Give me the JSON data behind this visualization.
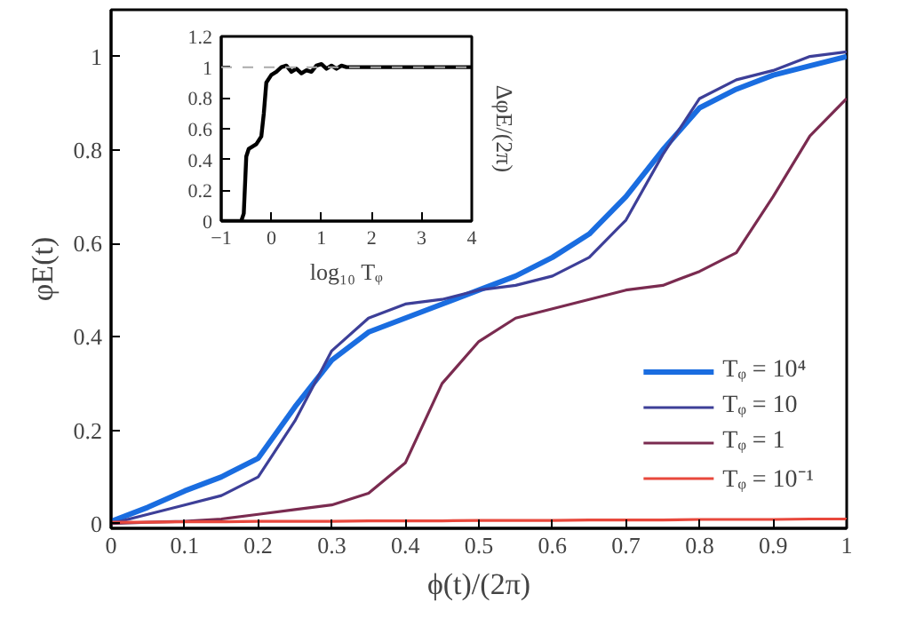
{
  "chart_data": [
    {
      "type": "line",
      "xlabel": "ϕ(t)/(2π)",
      "ylabel": "φE(t)",
      "xlim": [
        0,
        1
      ],
      "ylim": [
        -0.01,
        1.1
      ],
      "xticks": [
        0,
        0.1,
        0.2,
        0.3,
        0.4,
        0.5,
        0.6,
        0.7,
        0.8,
        0.9,
        1
      ],
      "yticks": [
        0,
        0.2,
        0.4,
        0.6,
        0.8,
        1
      ],
      "x": [
        0,
        0.05,
        0.1,
        0.15,
        0.2,
        0.25,
        0.3,
        0.35,
        0.4,
        0.45,
        0.5,
        0.55,
        0.6,
        0.65,
        0.7,
        0.75,
        0.8,
        0.85,
        0.9,
        0.95,
        1
      ],
      "legend": "bottom right",
      "grid": false,
      "line_style": "solid",
      "series": [
        {
          "name": "Tᵩ = 10⁴",
          "color": "#1a6de0",
          "values": [
            0.005,
            0.035,
            0.07,
            0.1,
            0.14,
            0.25,
            0.35,
            0.41,
            0.44,
            0.47,
            0.5,
            0.53,
            0.57,
            0.62,
            0.7,
            0.8,
            0.89,
            0.93,
            0.96,
            0.98,
            1.0
          ]
        },
        {
          "name": "Tᵩ = 10",
          "color": "#3d3f98",
          "values": [
            0.0,
            0.02,
            0.04,
            0.06,
            0.1,
            0.22,
            0.37,
            0.44,
            0.47,
            0.48,
            0.5,
            0.51,
            0.53,
            0.57,
            0.65,
            0.79,
            0.91,
            0.95,
            0.97,
            1.0,
            1.01
          ]
        },
        {
          "name": "Tᵩ = 1",
          "color": "#7a2b50",
          "values": [
            0.0,
            0.003,
            0.005,
            0.01,
            0.02,
            0.03,
            0.04,
            0.065,
            0.13,
            0.3,
            0.39,
            0.44,
            0.46,
            0.48,
            0.5,
            0.51,
            0.54,
            0.58,
            0.7,
            0.83,
            0.91
          ]
        },
        {
          "name": "Tᵩ = 10⁻¹",
          "color": "#e8483c",
          "values": [
            0.003,
            0.003,
            0.004,
            0.004,
            0.005,
            0.005,
            0.005,
            0.006,
            0.006,
            0.006,
            0.007,
            0.007,
            0.007,
            0.008,
            0.008,
            0.008,
            0.009,
            0.009,
            0.009,
            0.01,
            0.01
          ]
        }
      ]
    },
    {
      "type": "line",
      "xlabel": "log₁₀ Tᵩ",
      "y2label": "ΔφE/(2π)",
      "xlim": [
        -1,
        4
      ],
      "ylim": [
        0,
        1.2
      ],
      "xticks": [
        -1,
        0,
        1,
        2,
        3,
        4
      ],
      "yticks": [
        0,
        0.2,
        0.4,
        0.6,
        0.8,
        1,
        1.2
      ],
      "grid": false,
      "legend": false,
      "ref_lines": [
        {
          "axis": "y",
          "value": 1,
          "color": "#aaaaaa",
          "line_style": "dashed"
        }
      ],
      "x": [
        -1,
        -0.6,
        -0.55,
        -0.5,
        -0.45,
        -0.3,
        -0.2,
        -0.15,
        -0.1,
        0,
        0.1,
        0.2,
        0.3,
        0.4,
        0.5,
        0.6,
        0.7,
        0.8,
        0.9,
        1.0,
        1.1,
        1.2,
        1.3,
        1.4,
        1.5,
        1.6,
        2,
        4
      ],
      "series": [
        {
          "color": "#000000",
          "values": [
            0,
            0,
            0.05,
            0.42,
            0.47,
            0.5,
            0.55,
            0.7,
            0.9,
            0.95,
            0.97,
            1.0,
            1.01,
            0.97,
            0.99,
            0.96,
            0.98,
            0.97,
            1.01,
            1.02,
            0.99,
            1.01,
            0.99,
            1.01,
            1.0,
            1.0,
            1.0,
            1.0
          ]
        }
      ]
    }
  ]
}
